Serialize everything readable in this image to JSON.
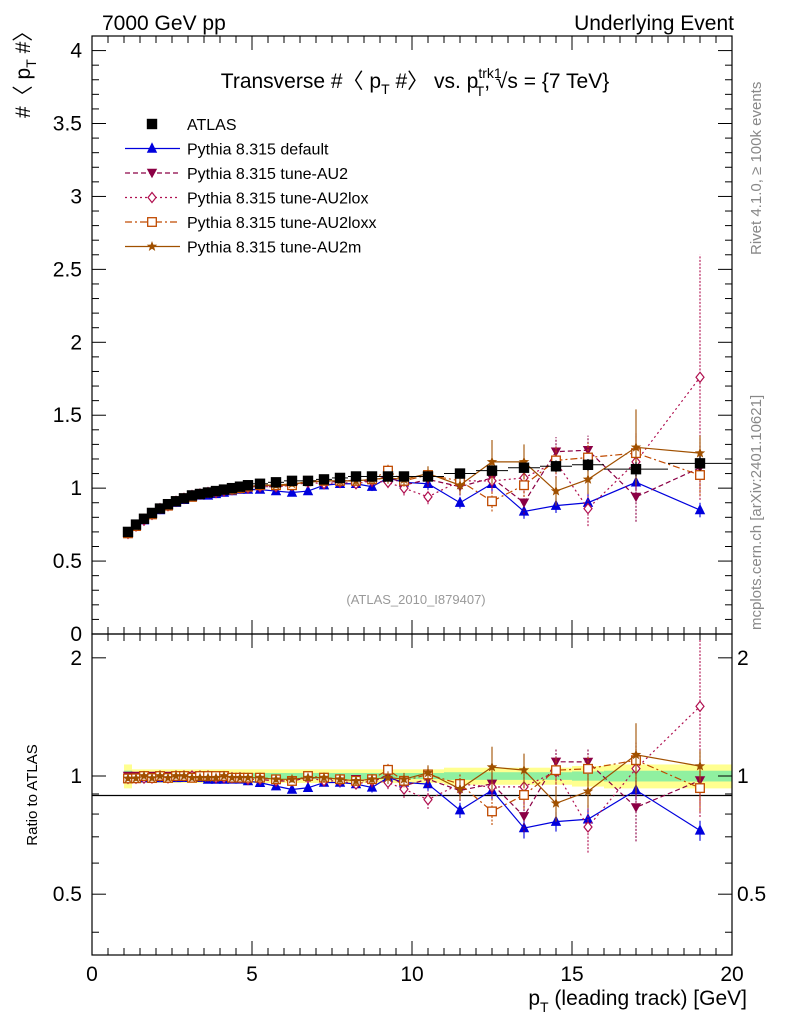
{
  "header": {
    "left": "7000 GeV pp",
    "right": "Underlying Event",
    "side_top": "Rivet 4.1.0, ≥ 100k events",
    "side_bottom": "mcplots.cern.ch [arXiv:2401.10621]"
  },
  "chart_data": {
    "type": "scatter",
    "title": "Transverse #⟨ p_T #⟩ vs. p_T^trk1, √s = {7 TeV}",
    "title_parts": {
      "a": "Transverse #〈 p",
      "sub1": "T",
      "b": " #〉 vs. p",
      "sup": "trk1",
      "sub2": "T",
      "c": ", √s = {7 TeV}"
    },
    "ylabel": "#〈 p_T #〉",
    "ylabel_parts": {
      "a": "#〈 p",
      "sub": "T",
      "b": " #〉"
    },
    "xlabel": "p_T (leading track) [GeV]",
    "xlabel_parts": {
      "a": "p",
      "sub": "T",
      "b": " (leading track) [GeV]"
    },
    "ratio_ylabel": "Ratio to ATLAS",
    "watermark": "(ATLAS_2010_I879407)",
    "xlim": [
      0,
      20
    ],
    "ylim": [
      0,
      4.1
    ],
    "ratio_ylim": [
      0.35,
      2.3
    ],
    "x_ticks": [
      "0",
      "5",
      "10",
      "15",
      "20"
    ],
    "y_ticks": [
      "0",
      "0.5",
      "1",
      "1.5",
      "2",
      "2.5",
      "3",
      "3.5",
      "4"
    ],
    "ratio_ticks": [
      "0.5",
      "1",
      "2"
    ],
    "x": [
      1.125,
      1.375,
      1.625,
      1.875,
      2.125,
      2.375,
      2.625,
      2.875,
      3.125,
      3.375,
      3.625,
      3.875,
      4.125,
      4.375,
      4.625,
      4.875,
      5.25,
      5.75,
      6.25,
      6.75,
      7.25,
      7.75,
      8.25,
      8.75,
      9.25,
      9.75,
      10.5,
      11.5,
      12.5,
      13.5,
      14.5,
      15.5,
      17.0,
      19.0
    ],
    "xerr": [
      0.125,
      0.125,
      0.125,
      0.125,
      0.125,
      0.125,
      0.125,
      0.125,
      0.125,
      0.125,
      0.125,
      0.125,
      0.125,
      0.125,
      0.125,
      0.125,
      0.25,
      0.25,
      0.25,
      0.25,
      0.25,
      0.25,
      0.25,
      0.25,
      0.25,
      0.25,
      0.5,
      0.5,
      0.5,
      0.5,
      0.5,
      0.5,
      1.0,
      1.0
    ],
    "ratio_band": [
      0.07,
      0.04,
      0.04,
      0.04,
      0.04,
      0.04,
      0.04,
      0.04,
      0.04,
      0.04,
      0.04,
      0.04,
      0.04,
      0.04,
      0.04,
      0.04,
      0.04,
      0.04,
      0.04,
      0.04,
      0.04,
      0.04,
      0.04,
      0.04,
      0.04,
      0.04,
      0.04,
      0.05,
      0.05,
      0.05,
      0.05,
      0.06,
      0.07,
      0.07
    ],
    "series": [
      {
        "name": "ATLAS",
        "color": "#000000",
        "marker": "square",
        "dash": "none",
        "values": [
          0.7,
          0.75,
          0.79,
          0.83,
          0.86,
          0.89,
          0.91,
          0.93,
          0.95,
          0.96,
          0.97,
          0.98,
          0.99,
          1.0,
          1.01,
          1.02,
          1.03,
          1.04,
          1.05,
          1.05,
          1.06,
          1.07,
          1.08,
          1.08,
          1.08,
          1.08,
          1.08,
          1.1,
          1.12,
          1.14,
          1.15,
          1.16,
          1.13,
          1.17
        ],
        "err": [
          0.01,
          0.01,
          0.01,
          0.01,
          0.01,
          0.01,
          0.01,
          0.01,
          0.01,
          0.01,
          0.01,
          0.01,
          0.01,
          0.01,
          0.01,
          0.01,
          0.01,
          0.01,
          0.01,
          0.01,
          0.01,
          0.02,
          0.02,
          0.02,
          0.02,
          0.02,
          0.02,
          0.03,
          0.03,
          0.03,
          0.04,
          0.04,
          0.05,
          0.05
        ]
      },
      {
        "name": "Pythia 8.315 default",
        "color": "#0000dd",
        "marker": "triangle-up",
        "dash": "none",
        "values": [
          0.69,
          0.74,
          0.78,
          0.82,
          0.85,
          0.88,
          0.9,
          0.92,
          0.94,
          0.95,
          0.95,
          0.96,
          0.97,
          0.98,
          0.99,
          0.99,
          0.99,
          0.98,
          0.97,
          0.98,
          1.02,
          1.03,
          1.03,
          1.01,
          1.07,
          1.04,
          1.03,
          0.9,
          1.03,
          0.84,
          0.88,
          0.9,
          1.04,
          0.85
        ],
        "err": [
          0.01,
          0.01,
          0.01,
          0.01,
          0.01,
          0.01,
          0.01,
          0.01,
          0.01,
          0.01,
          0.01,
          0.01,
          0.01,
          0.01,
          0.01,
          0.01,
          0.01,
          0.02,
          0.02,
          0.02,
          0.02,
          0.03,
          0.03,
          0.03,
          0.04,
          0.04,
          0.04,
          0.04,
          0.05,
          0.05,
          0.05,
          0.06,
          0.06,
          0.05
        ]
      },
      {
        "name": "Pythia 8.315 tune-AU2",
        "color": "#8b0045",
        "marker": "triangle-down",
        "dash": "5,3",
        "values": [
          0.7,
          0.75,
          0.79,
          0.83,
          0.86,
          0.89,
          0.91,
          0.93,
          0.95,
          0.96,
          0.97,
          0.98,
          0.98,
          0.99,
          1.0,
          1.01,
          1.01,
          1.01,
          1.02,
          1.04,
          1.05,
          1.04,
          1.06,
          1.04,
          1.09,
          1.02,
          1.06,
          1.01,
          1.07,
          0.9,
          1.25,
          1.26,
          0.94,
          1.14
        ],
        "err": [
          0.01,
          0.01,
          0.01,
          0.01,
          0.01,
          0.01,
          0.01,
          0.01,
          0.01,
          0.01,
          0.01,
          0.01,
          0.01,
          0.01,
          0.01,
          0.01,
          0.02,
          0.02,
          0.02,
          0.02,
          0.03,
          0.03,
          0.03,
          0.03,
          0.04,
          0.05,
          0.05,
          0.06,
          0.07,
          0.08,
          0.1,
          0.1,
          0.17,
          0.15
        ]
      },
      {
        "name": "Pythia 8.315 tune-AU2lox",
        "color": "#b01050",
        "marker": "diamond",
        "dash": "2,3",
        "values": [
          0.69,
          0.74,
          0.78,
          0.82,
          0.86,
          0.88,
          0.91,
          0.93,
          0.95,
          0.96,
          0.97,
          0.97,
          0.98,
          0.99,
          1.0,
          1.0,
          1.01,
          1.01,
          1.02,
          1.04,
          1.03,
          1.04,
          1.03,
          1.05,
          1.04,
          1.0,
          0.94,
          1.05,
          1.05,
          1.07,
          1.18,
          0.86,
          1.18,
          1.76
        ],
        "err": [
          0.01,
          0.01,
          0.01,
          0.01,
          0.01,
          0.01,
          0.01,
          0.01,
          0.01,
          0.01,
          0.01,
          0.01,
          0.01,
          0.01,
          0.01,
          0.01,
          0.02,
          0.02,
          0.02,
          0.02,
          0.03,
          0.03,
          0.03,
          0.04,
          0.04,
          0.05,
          0.05,
          0.06,
          0.08,
          0.1,
          0.11,
          0.12,
          0.2,
          0.84
        ]
      },
      {
        "name": "Pythia 8.315 tune-AU2loxx",
        "color": "#c04a00",
        "marker": "square-open",
        "dash": "7,3,2,3",
        "values": [
          0.69,
          0.74,
          0.79,
          0.82,
          0.86,
          0.88,
          0.91,
          0.93,
          0.94,
          0.96,
          0.97,
          0.98,
          0.99,
          0.99,
          1.0,
          1.01,
          1.02,
          1.02,
          1.02,
          1.05,
          1.05,
          1.05,
          1.05,
          1.06,
          1.12,
          1.05,
          1.09,
          1.05,
          0.91,
          1.02,
          1.19,
          1.21,
          1.24,
          1.09
        ],
        "err": [
          0.01,
          0.01,
          0.01,
          0.01,
          0.01,
          0.01,
          0.01,
          0.01,
          0.01,
          0.01,
          0.01,
          0.01,
          0.01,
          0.01,
          0.01,
          0.01,
          0.02,
          0.02,
          0.02,
          0.02,
          0.03,
          0.03,
          0.03,
          0.03,
          0.04,
          0.04,
          0.05,
          0.06,
          0.07,
          0.08,
          0.09,
          0.1,
          0.13,
          0.14
        ]
      },
      {
        "name": "Pythia 8.315 tune-AU2m",
        "color": "#a05000",
        "marker": "star",
        "dash": "none",
        "values": [
          0.69,
          0.74,
          0.79,
          0.82,
          0.86,
          0.88,
          0.91,
          0.93,
          0.94,
          0.95,
          0.96,
          0.97,
          0.99,
          0.99,
          1.0,
          1.01,
          1.02,
          1.02,
          1.03,
          1.04,
          1.05,
          1.05,
          1.05,
          1.06,
          1.07,
          1.06,
          1.1,
          1.02,
          1.18,
          1.18,
          0.98,
          1.06,
          1.28,
          1.24
        ],
        "err": [
          0.01,
          0.01,
          0.01,
          0.01,
          0.01,
          0.01,
          0.01,
          0.01,
          0.01,
          0.01,
          0.01,
          0.01,
          0.01,
          0.01,
          0.01,
          0.01,
          0.02,
          0.02,
          0.02,
          0.02,
          0.03,
          0.03,
          0.03,
          0.03,
          0.04,
          0.04,
          0.05,
          0.06,
          0.15,
          0.12,
          0.1,
          0.1,
          0.26,
          0.12
        ]
      }
    ]
  }
}
